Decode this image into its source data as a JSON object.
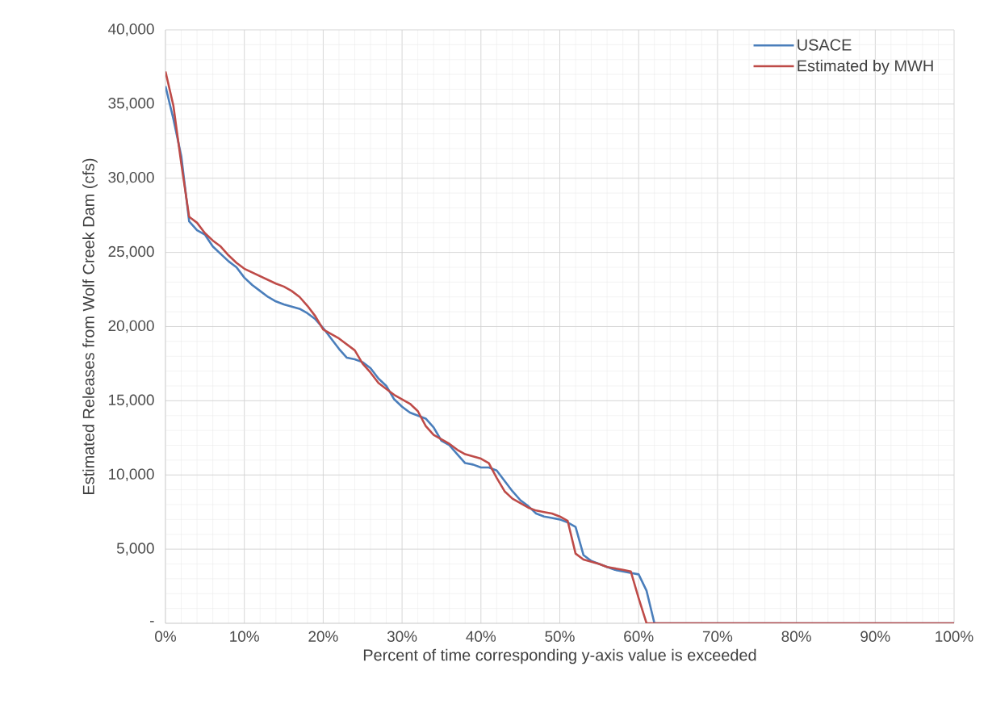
{
  "chart_data": {
    "type": "line",
    "xlabel": "Percent of time corresponding y-axis value is exceeded",
    "ylabel": "Estimated Releases from Wolf Creek Dam (cfs)",
    "xlim": [
      0,
      100
    ],
    "ylim": [
      0,
      40000
    ],
    "xticks": [
      {
        "value": 0,
        "label": "0%"
      },
      {
        "value": 10,
        "label": "10%"
      },
      {
        "value": 20,
        "label": "20%"
      },
      {
        "value": 30,
        "label": "30%"
      },
      {
        "value": 40,
        "label": "40%"
      },
      {
        "value": 50,
        "label": "50%"
      },
      {
        "value": 60,
        "label": "60%"
      },
      {
        "value": 70,
        "label": "70%"
      },
      {
        "value": 80,
        "label": "80%"
      },
      {
        "value": 90,
        "label": "90%"
      },
      {
        "value": 100,
        "label": "100%"
      }
    ],
    "yticks": [
      {
        "value": 0,
        "label": "-"
      },
      {
        "value": 5000,
        "label": "5,000"
      },
      {
        "value": 10000,
        "label": "10,000"
      },
      {
        "value": 15000,
        "label": "15,000"
      },
      {
        "value": 20000,
        "label": "20,000"
      },
      {
        "value": 25000,
        "label": "25,000"
      },
      {
        "value": 30000,
        "label": "30,000"
      },
      {
        "value": 35000,
        "label": "35,000"
      },
      {
        "value": 40000,
        "label": "40,000"
      }
    ],
    "grid": true,
    "legend": "top right",
    "marker": "none",
    "line_style": "solid",
    "series": [
      {
        "name": "USACE",
        "color": "#4a7ebb",
        "x": [
          0,
          1,
          2,
          3,
          4,
          5,
          6,
          7,
          8,
          9,
          10,
          11,
          12,
          13,
          14,
          15,
          17,
          18,
          19,
          20,
          21,
          22,
          23,
          24,
          25,
          26,
          27,
          28,
          29,
          30,
          31,
          32,
          33,
          34,
          35,
          36,
          37,
          38,
          39,
          40,
          41,
          42,
          43,
          44,
          45,
          46,
          47,
          48,
          49,
          50,
          51,
          52,
          53,
          54,
          55,
          56,
          57,
          58,
          59,
          60,
          61,
          62,
          100
        ],
        "values": [
          36200,
          34000,
          31500,
          27100,
          26500,
          26200,
          25400,
          24900,
          24400,
          24000,
          23300,
          22800,
          22400,
          22000,
          21700,
          21500,
          21200,
          20900,
          20500,
          19900,
          19200,
          18500,
          17900,
          17800,
          17600,
          17200,
          16500,
          16000,
          15100,
          14600,
          14200,
          14000,
          13800,
          13200,
          12300,
          12000,
          11400,
          10800,
          10700,
          10500,
          10500,
          10300,
          9600,
          8900,
          8300,
          7900,
          7400,
          7200,
          7100,
          7000,
          6800,
          6500,
          4600,
          4200,
          4000,
          3800,
          3600,
          3500,
          3400,
          3300,
          2200,
          0,
          0
        ]
      },
      {
        "name": "Estimated by MWH",
        "color": "#be4b48",
        "x": [
          0,
          1,
          2,
          3,
          4,
          5,
          6,
          7,
          8,
          9,
          10,
          12,
          14,
          15,
          16,
          17,
          18,
          19,
          20,
          22,
          24,
          25,
          26,
          27,
          28,
          29,
          30,
          31,
          32,
          33,
          34,
          36,
          37,
          38,
          40,
          41,
          42,
          43,
          44,
          45,
          46,
          47,
          48,
          49,
          50,
          51,
          52,
          53,
          55,
          56,
          58,
          59,
          60,
          61,
          100
        ],
        "values": [
          37200,
          34900,
          31000,
          27400,
          27000,
          26300,
          25800,
          25400,
          24800,
          24300,
          23900,
          23400,
          22900,
          22700,
          22400,
          22000,
          21400,
          20700,
          19800,
          19200,
          18400,
          17500,
          16900,
          16200,
          15800,
          15400,
          15100,
          14800,
          14300,
          13300,
          12700,
          12100,
          11700,
          11400,
          11100,
          10800,
          9800,
          8900,
          8400,
          8100,
          7800,
          7600,
          7500,
          7400,
          7200,
          6900,
          4700,
          4300,
          4000,
          3800,
          3600,
          3500,
          1700,
          0,
          0
        ]
      }
    ]
  }
}
